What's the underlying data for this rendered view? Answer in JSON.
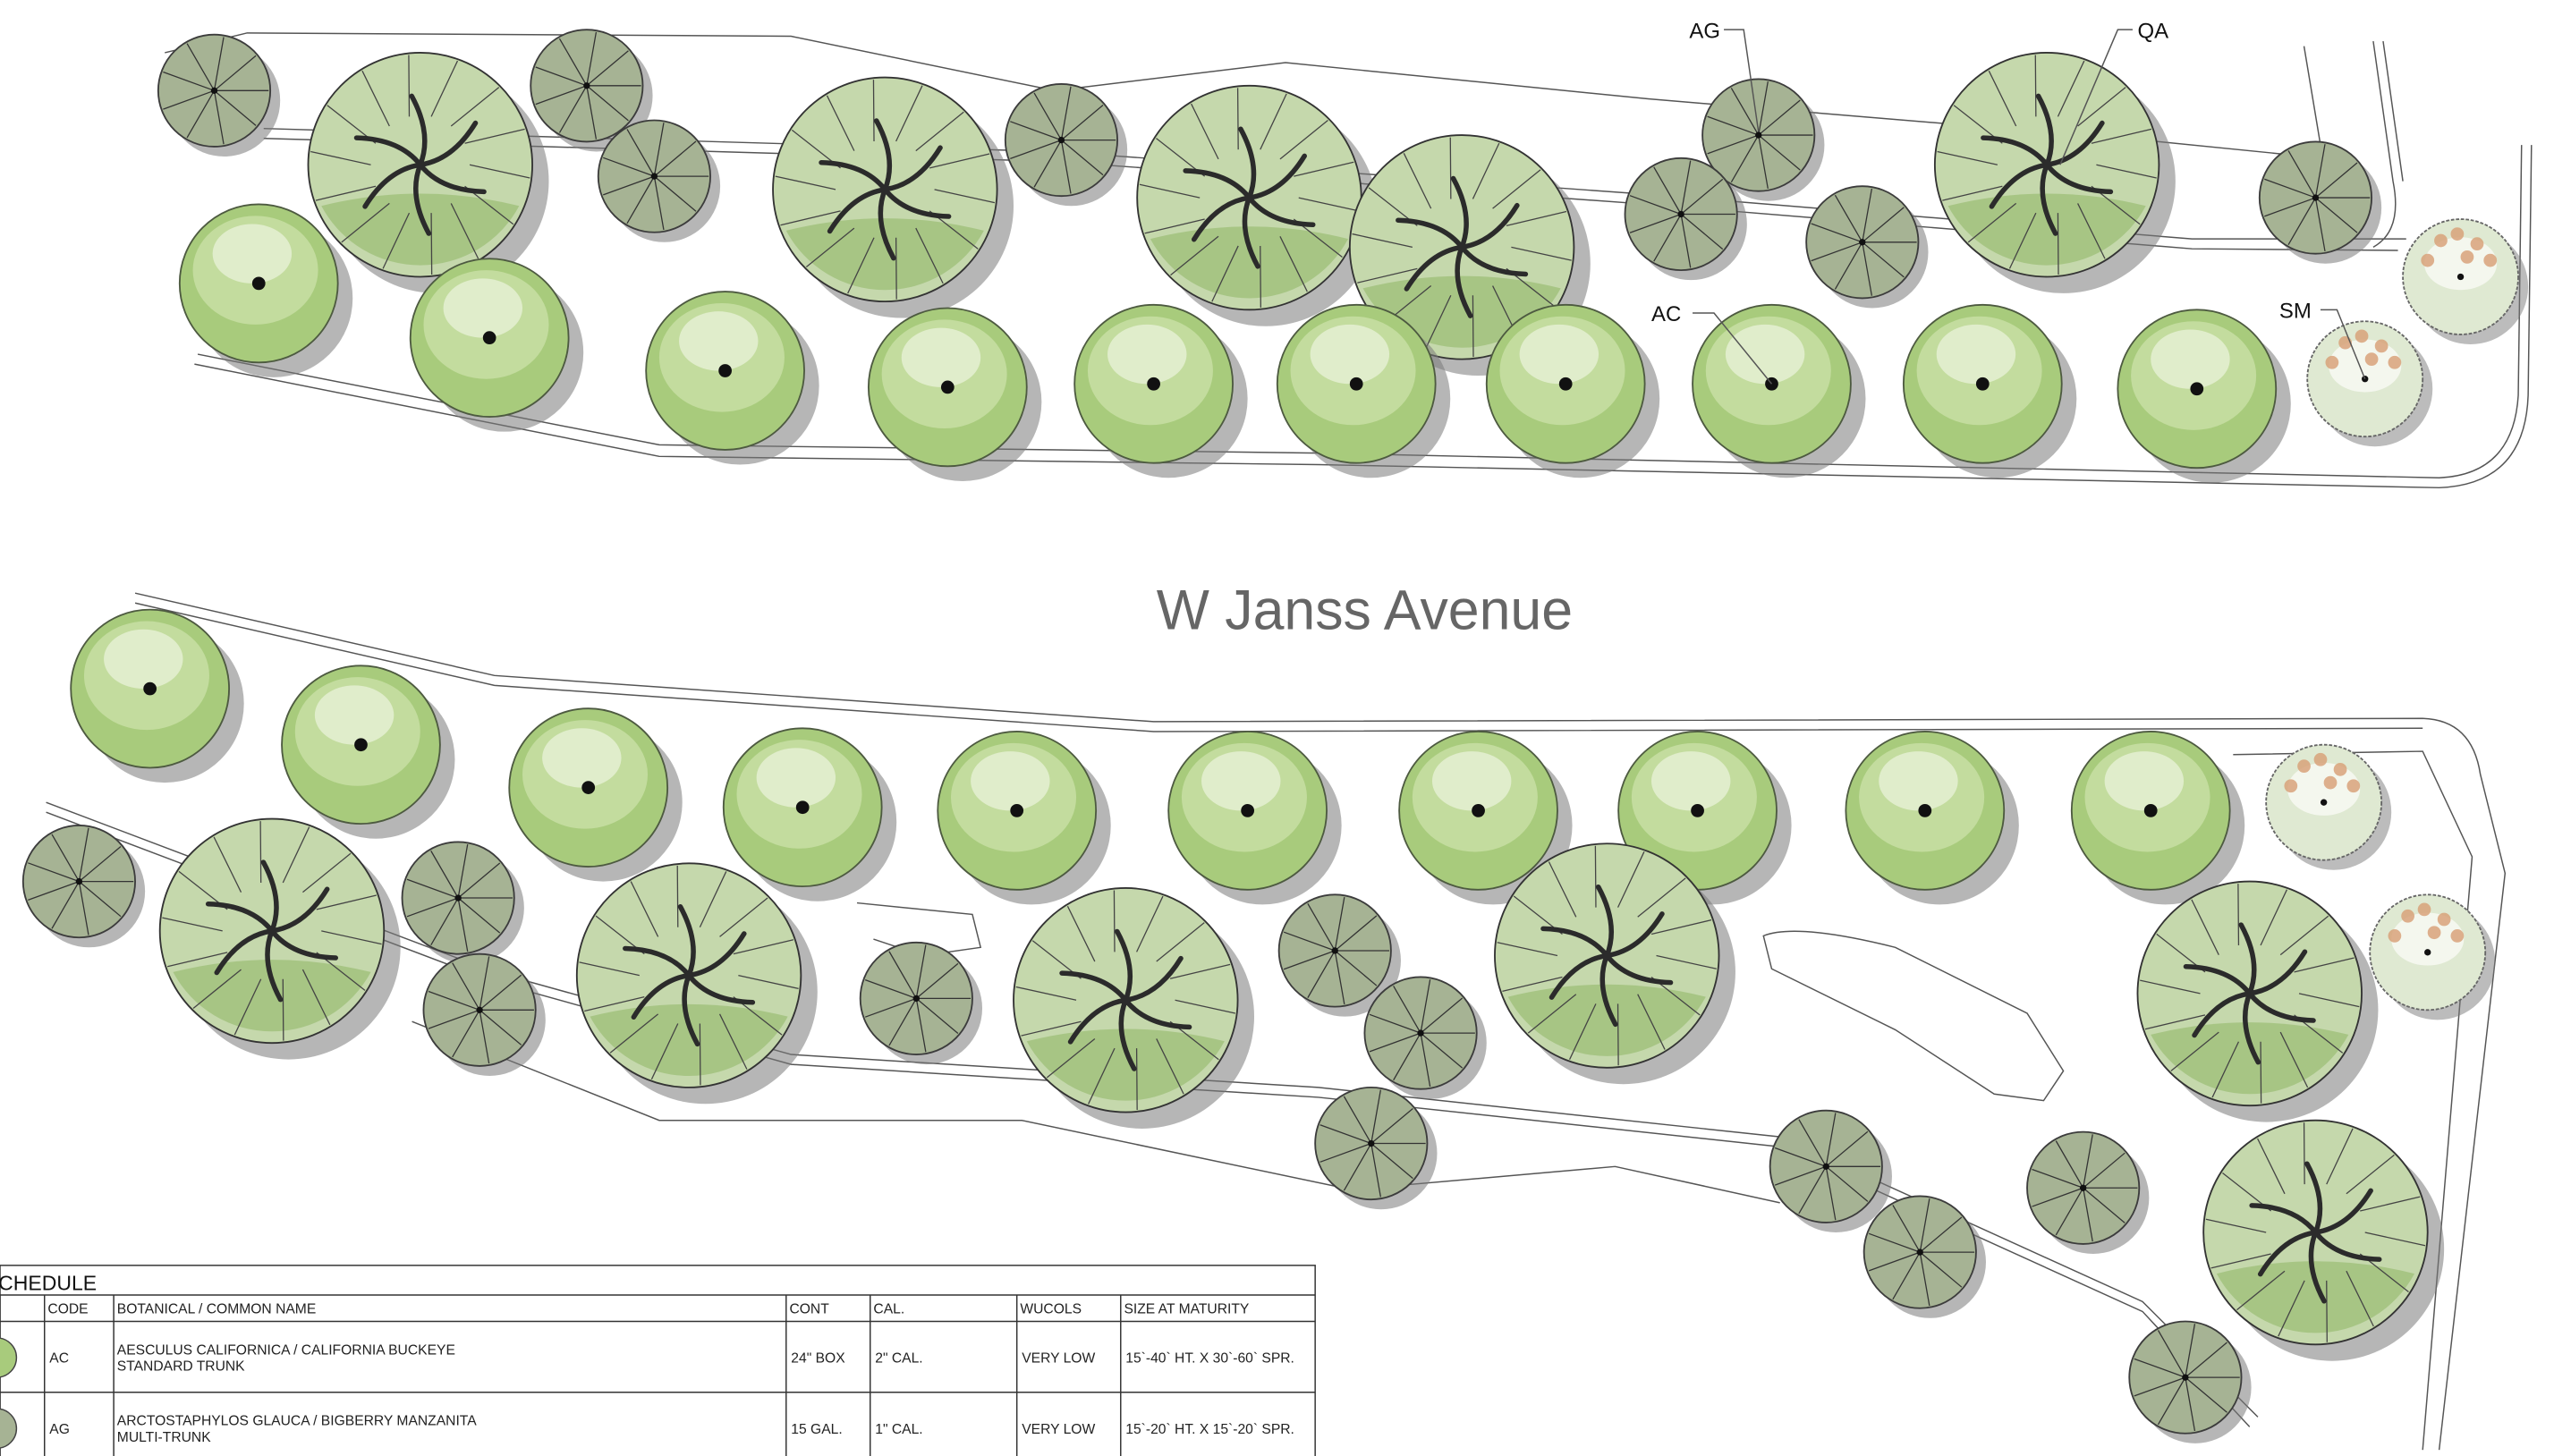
{
  "labels": {
    "ag": "AG",
    "qa": "QA",
    "ac": "AC",
    "sm": "SM"
  },
  "street": "W Janss Avenue",
  "schedule": {
    "title": "CHEDULE",
    "headers": [
      "CODE",
      "BOTANICAL / COMMON NAME",
      "CONT",
      "CAL.",
      "WUCOLS",
      "SIZE AT MATURITY"
    ],
    "rows": [
      {
        "code": "AC",
        "botanical": "AESCULUS CALIFORNICA / CALIFORNIA BUCKEYE",
        "note": "STANDARD TRUNK",
        "cont": "24\" BOX",
        "cal": "2\" CAL.",
        "wucols": "VERY LOW",
        "size": "15`-40` HT. X 30`-60` SPR."
      },
      {
        "code": "AG",
        "botanical": "ARCTOSTAPHYLOS GLAUCA / BIGBERRY MANZANITA",
        "note": "MULTI-TRUNK",
        "cont": "15 GAL.",
        "cal": "1\" CAL.",
        "wucols": "VERY LOW",
        "size": "15`-20` HT. X 15`-20` SPR."
      }
    ]
  }
}
